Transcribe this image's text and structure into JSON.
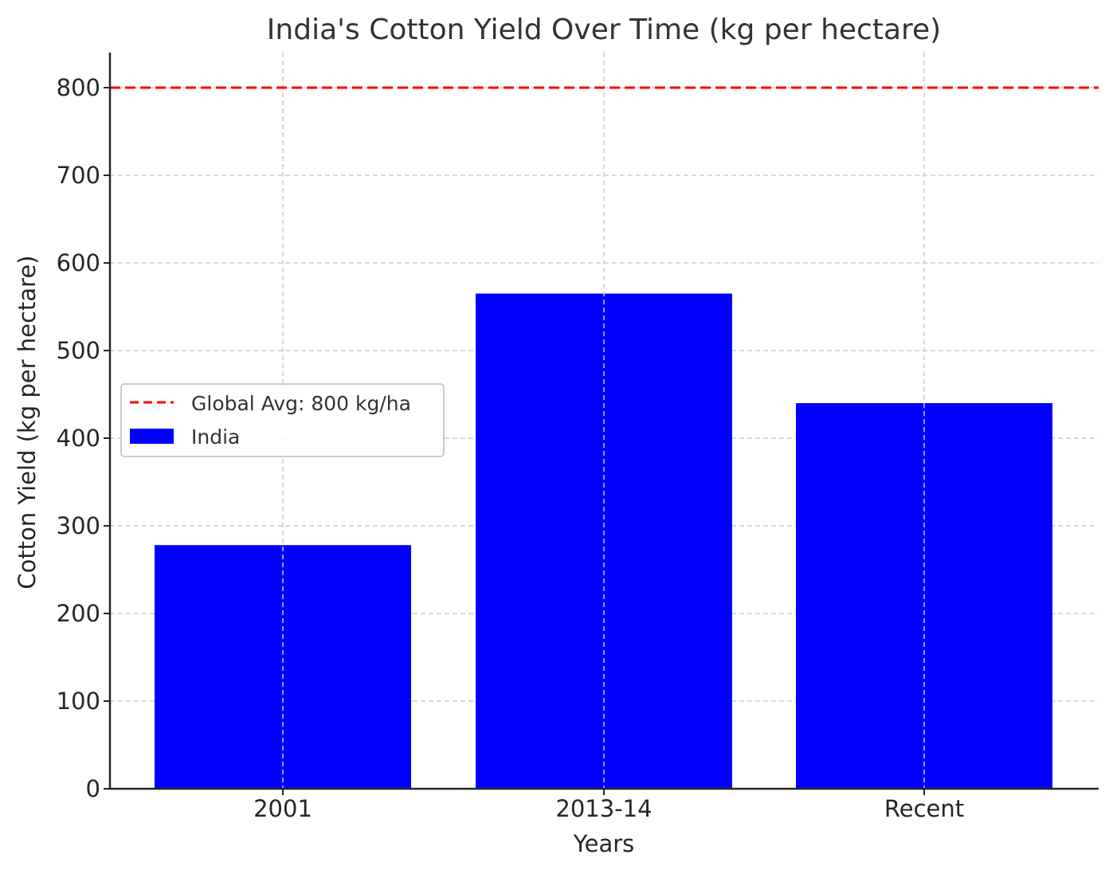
{
  "chart_data": {
    "type": "bar",
    "title": "India's Cotton Yield Over Time (kg per hectare)",
    "xlabel": "Years",
    "ylabel": "Cotton Yield (kg per hectare)",
    "categories": [
      "2001",
      "2013-14",
      "Recent"
    ],
    "series": [
      {
        "name": "India",
        "values": [
          278,
          565,
          440
        ],
        "color": "#0000ff"
      }
    ],
    "reference_lines": [
      {
        "name": "Global Avg: 800 kg/ha",
        "value": 800,
        "color": "#ff0000",
        "style": "dashed"
      }
    ],
    "ylim": [
      0,
      840
    ],
    "yticks": [
      0,
      100,
      200,
      300,
      400,
      500,
      600,
      700,
      800
    ],
    "grid": true,
    "legend": {
      "position": "center-left",
      "entries": [
        "Global Avg: 800 kg/ha",
        "India"
      ]
    }
  }
}
